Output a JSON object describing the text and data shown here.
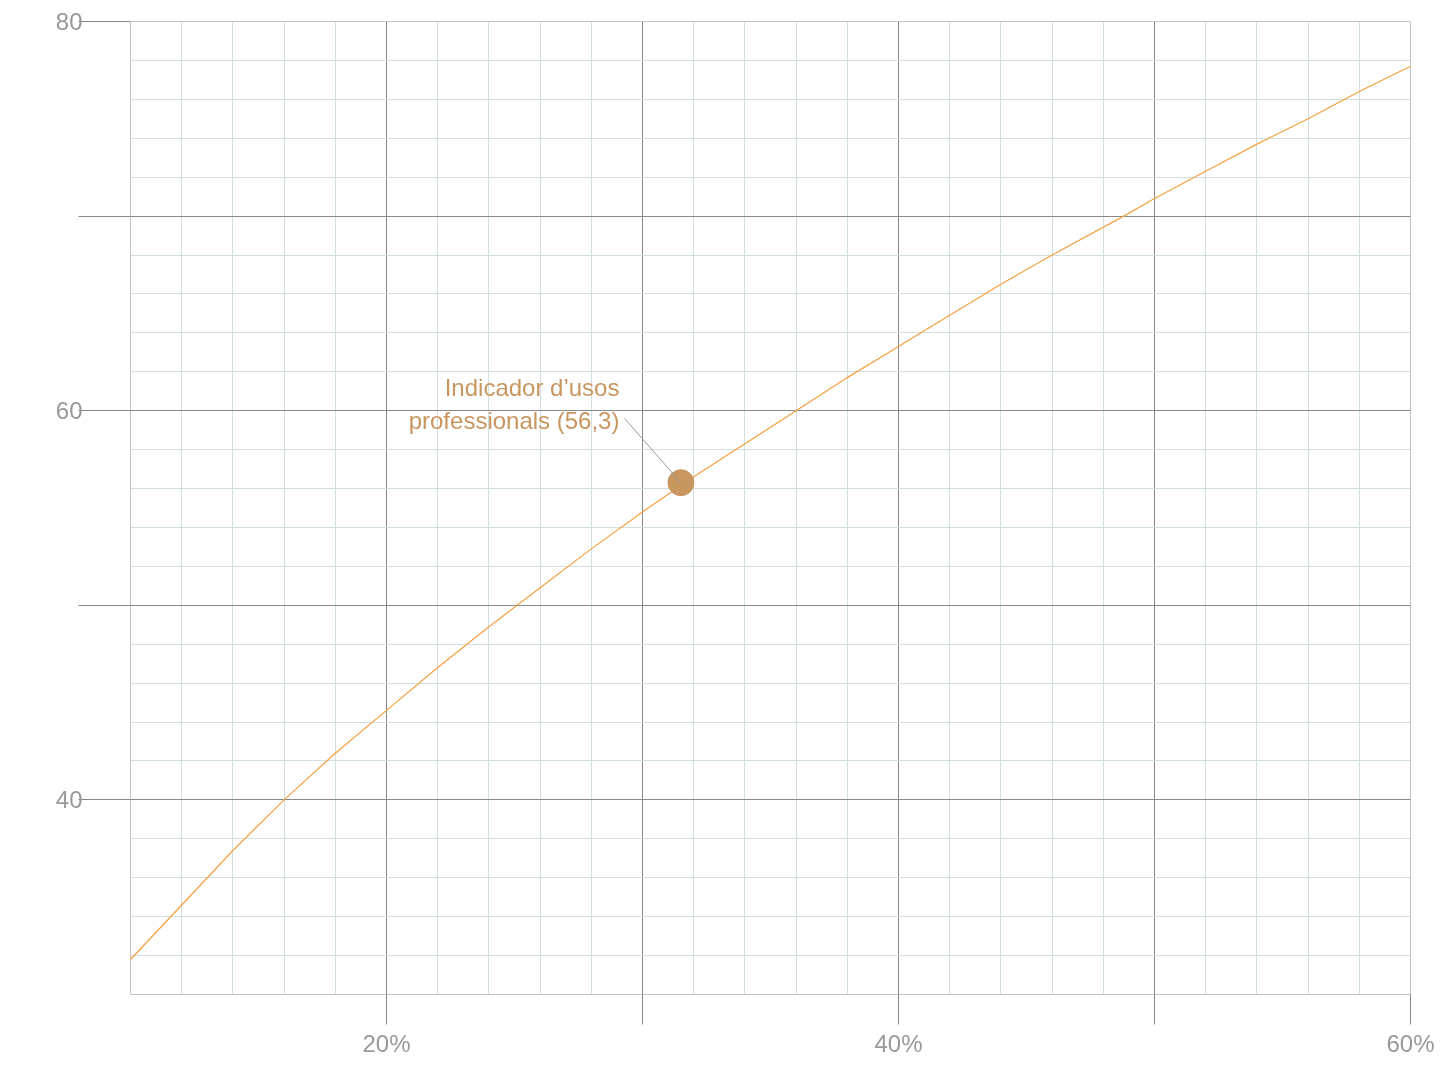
{
  "chart_data": {
    "type": "line",
    "xlim": [
      10,
      60
    ],
    "ylim": [
      30,
      80
    ],
    "xticks": [
      {
        "value": 20,
        "label": "20%"
      },
      {
        "value": 30,
        "label": null
      },
      {
        "value": 40,
        "label": "40%"
      },
      {
        "value": 50,
        "label": null
      },
      {
        "value": 60,
        "label": "60%"
      }
    ],
    "yticks": [
      40,
      {
        "value": 50,
        "label": null
      },
      60,
      {
        "value": 70,
        "label": null
      },
      80
    ],
    "grid": true,
    "marker": "none",
    "series": [
      {
        "color": "#f5a040",
        "x": [
          10,
          12,
          14,
          16,
          18,
          20,
          22,
          24,
          26,
          28,
          30,
          32,
          34,
          36,
          38,
          40,
          42,
          44,
          46,
          48.8,
          50,
          52,
          54,
          56,
          58,
          60
        ],
        "values": [
          31.8,
          34.6,
          37.4,
          40.0,
          42.4,
          44.6,
          46.8,
          48.9,
          50.9,
          52.9,
          54.8,
          56.6,
          58.3,
          60.0,
          61.7,
          63.3,
          64.9,
          66.5,
          68.0,
          70.0,
          70.9,
          72.3,
          73.7,
          75.0,
          76.4,
          77.7
        ]
      },
      {
        "type": "scatter",
        "marker": "circle",
        "color": "#c8965f",
        "x": [
          31.5
        ],
        "values": [
          56.3
        ]
      }
    ],
    "annotations": [
      {
        "text": "Indicador d’usos\nprofessionals (56,3)",
        "x": 31.5,
        "y": 56.3
      }
    ]
  }
}
